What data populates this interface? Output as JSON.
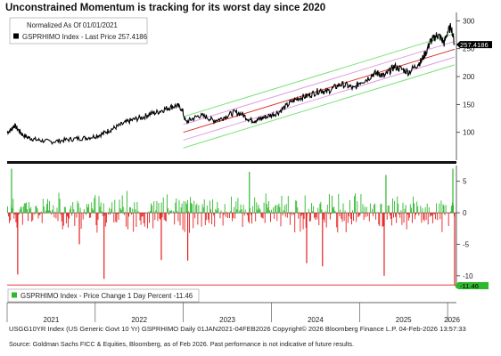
{
  "title": "Unconstrained Momentum is tracking for its worst day since 2020",
  "footer": "USGG10YR Index (US Generic Govt 10 Yr) GSPRHIMO Daily 01JAN2021-04FEB2026 Copyright© 2026 Bloomberg Finance L.P. 04-Feb-2026 13:57:33",
  "source": "Source: Goldman Sachs FICC & Equities, Bloomberg, as of Feb 2026. Past performance is not indicative of future results.",
  "colors": {
    "price_line": "#000000",
    "channel_outer": "#7fe07f",
    "channel_inner": "#e0a0e0",
    "regression": "#e03030",
    "up_bar": "#2db82d",
    "down_bar": "#e61e1e",
    "current_label_price": "#000000",
    "current_label_change": "#2db82d"
  },
  "chart_data": [
    {
      "type": "line",
      "panel": "top",
      "legend_header": "Normalized As Of 01/01/2021",
      "legend_entry": "GSPRHIMO Index - Last Price 257.4186",
      "last_value_label": "257.4186",
      "last_value": 257.4186,
      "x_range": [
        2021.0,
        2026.1
      ],
      "ylim": [
        50,
        315
      ],
      "yticks": [
        100,
        150,
        200,
        250,
        300
      ],
      "series": [
        {
          "x": [
            2021.0,
            2021.05,
            2021.08,
            2021.13,
            2021.18,
            2021.25,
            2021.32,
            2021.4,
            2021.5,
            2021.6,
            2021.7,
            2021.8,
            2021.9,
            2022.0,
            2022.08,
            2022.15,
            2022.22,
            2022.3,
            2022.38,
            2022.46,
            2022.54,
            2022.62,
            2022.7,
            2022.78,
            2022.85,
            2022.92,
            2022.98,
            2023.03,
            2023.1,
            2023.18,
            2023.26,
            2023.34,
            2023.42,
            2023.5,
            2023.58,
            2023.66,
            2023.74,
            2023.8,
            2023.86,
            2023.92,
            2024.0,
            2024.08,
            2024.16,
            2024.24,
            2024.32,
            2024.4,
            2024.48,
            2024.56,
            2024.62,
            2024.7,
            2024.78,
            2024.86,
            2024.94,
            2025.0,
            2025.08,
            2025.16,
            2025.22,
            2025.28,
            2025.34,
            2025.4,
            2025.48,
            2025.56,
            2025.64,
            2025.7,
            2025.76,
            2025.8,
            2025.84,
            2025.88,
            2025.92,
            2025.96,
            2026.0,
            2026.04,
            2026.08
          ],
          "y": [
            100,
            105,
            113,
            104,
            95,
            90,
            87,
            85,
            83,
            85,
            87,
            89,
            90,
            93,
            97,
            103,
            108,
            114,
            120,
            124,
            127,
            133,
            136,
            141,
            145,
            148,
            143,
            118,
            124,
            130,
            128,
            121,
            124,
            130,
            136,
            133,
            124,
            121,
            123,
            127,
            131,
            136,
            146,
            156,
            162,
            165,
            170,
            176,
            172,
            179,
            186,
            184,
            178,
            190,
            195,
            205,
            206,
            200,
            210,
            218,
            213,
            208,
            219,
            228,
            245,
            262,
            268,
            275,
            270,
            260,
            280,
            290,
            257.4
          ]
        }
      ],
      "regression_channel": {
        "x": [
          2023.0,
          2026.08
        ],
        "middle": [
          100,
          249
        ],
        "inner_offset": 14,
        "outer_offset": 28
      }
    },
    {
      "type": "bar",
      "panel": "bottom",
      "legend_entry": "GSPRHIMO Index - Price Change 1 Day Percent -11.46",
      "last_value_label": "-11.46",
      "last_value": -11.46,
      "x_range": [
        2021.0,
        2026.1
      ],
      "ylim": [
        -12,
        7.5
      ],
      "yticks": [
        -10,
        -5,
        0,
        5
      ],
      "large_moves": [
        {
          "x": 2021.05,
          "value": 7.0
        },
        {
          "x": 2021.12,
          "value": -9.8
        },
        {
          "x": 2021.82,
          "value": -5.0
        },
        {
          "x": 2022.1,
          "value": -10.5
        },
        {
          "x": 2022.75,
          "value": -7.5
        },
        {
          "x": 2023.05,
          "value": -7.6
        },
        {
          "x": 2023.75,
          "value": 6.5
        },
        {
          "x": 2024.4,
          "value": -8.0
        },
        {
          "x": 2024.58,
          "value": -8.5
        },
        {
          "x": 2025.28,
          "value": -10.0
        },
        {
          "x": 2025.3,
          "value": 6.0
        },
        {
          "x": 2026.08,
          "value": -11.46
        },
        {
          "x": 2026.06,
          "value": 7.0
        }
      ],
      "typical_amplitude": 3
    }
  ],
  "x_axis": {
    "year_labels": [
      "2021",
      "2022",
      "2023",
      "2024",
      "2025",
      "2026"
    ],
    "year_starts": [
      2021,
      2022,
      2023,
      2024,
      2025,
      2026
    ]
  }
}
